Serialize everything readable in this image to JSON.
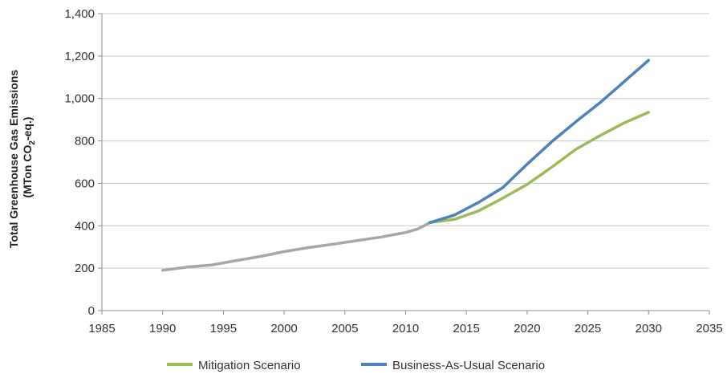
{
  "chart_data": {
    "type": "line",
    "ylabel_line1": "Total Greenhouse Gas Emissions",
    "ylabel_line2_prefix": "(MTon CO",
    "ylabel_line2_sub": "2",
    "ylabel_line2_suffix": "-eq.)",
    "xlim": [
      1985,
      2035
    ],
    "ylim": [
      0,
      1400
    ],
    "x_ticks": [
      1985,
      1990,
      1995,
      2000,
      2005,
      2010,
      2015,
      2020,
      2025,
      2030,
      2035
    ],
    "y_ticks": [
      0,
      200,
      400,
      600,
      800,
      1000,
      1200,
      1400
    ],
    "y_tick_labels": [
      "0",
      "200",
      "400",
      "600",
      "800",
      "1,000",
      "1,200",
      "1,400"
    ],
    "grid": "horizontal",
    "legend_position": "bottom",
    "series": [
      {
        "key": "historical",
        "color": "#a6a6a6",
        "x": [
          1990,
          1992,
          1994,
          1996,
          1998,
          2000,
          2002,
          2004,
          2006,
          2008,
          2010,
          2011,
          2012
        ],
        "y": [
          190,
          205,
          215,
          235,
          255,
          278,
          297,
          313,
          330,
          347,
          368,
          385,
          415
        ]
      },
      {
        "key": "mitigation",
        "name": "Mitigation Scenario",
        "color": "#9bbb59",
        "x": [
          2012,
          2014,
          2016,
          2018,
          2020,
          2022,
          2024,
          2026,
          2028,
          2030
        ],
        "y": [
          415,
          430,
          470,
          530,
          595,
          675,
          760,
          825,
          885,
          935
        ]
      },
      {
        "key": "bau",
        "name": "Business-As-Usual Scenario",
        "color": "#4f81bd",
        "x": [
          2012,
          2014,
          2016,
          2018,
          2020,
          2022,
          2024,
          2026,
          2028,
          2030
        ],
        "y": [
          415,
          450,
          510,
          580,
          690,
          795,
          890,
          980,
          1080,
          1180
        ]
      }
    ]
  }
}
